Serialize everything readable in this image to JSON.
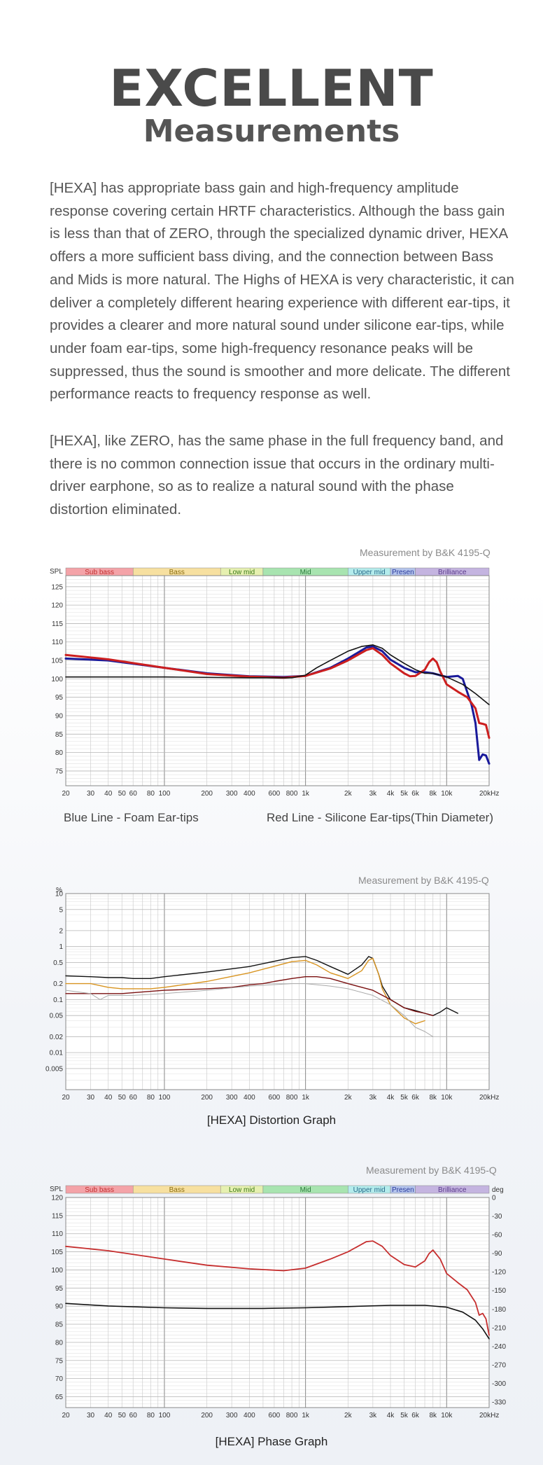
{
  "header": {
    "title": "EXCELLENT",
    "subtitle": "Measurements"
  },
  "paragraphs": [
    "[HEXA] has appropriate bass gain and high-frequency amplitude response covering certain HRTF characteristics. Although the bass gain is less than that of ZERO, through the specialized dynamic driver, HEXA offers a more sufficient bass diving, and the connection between Bass and Mids is more natural. The Highs of HEXA is very characteristic, it can deliver a completely different hearing experience with different ear-tips, it provides a clearer and more natural sound under silicone ear-tips, while under foam ear-tips, some high-frequency resonance peaks will be suppressed, thus the sound is smoother and more delicate. The different performance reacts to frequency response as well.",
    "[HEXA], like ZERO, has the same phase in the full frequency band, and there is no common connection issue that occurs in the ordinary multi-driver earphone, so as to realize a natural sound with the phase distortion eliminated."
  ],
  "colors": {
    "blue": "#1a1a9a",
    "red": "#cc1f1f",
    "black": "#111111",
    "dark_red": "#7a1010",
    "orange": "#d89420",
    "gray": "#aaaaaa",
    "phase_red": "#c62e2e"
  },
  "chart_data": [
    {
      "type": "line",
      "source_label": "Measurement by B&K 4195-Q",
      "ylabel": "SPL",
      "xlabel": "",
      "x_scale": "log",
      "xlim": [
        20,
        20000
      ],
      "ylim": [
        71,
        128
      ],
      "xticks": [
        {
          "v": 20,
          "t": "20"
        },
        {
          "v": 30,
          "t": "30"
        },
        {
          "v": 40,
          "t": "40"
        },
        {
          "v": 50,
          "t": "50"
        },
        {
          "v": 60,
          "t": "60"
        },
        {
          "v": 80,
          "t": "80"
        },
        {
          "v": 100,
          "t": "100"
        },
        {
          "v": 200,
          "t": "200"
        },
        {
          "v": 300,
          "t": "300"
        },
        {
          "v": 400,
          "t": "400"
        },
        {
          "v": 600,
          "t": "600"
        },
        {
          "v": 800,
          "t": "800"
        },
        {
          "v": 1000,
          "t": "1k"
        },
        {
          "v": 2000,
          "t": "2k"
        },
        {
          "v": 3000,
          "t": "3k"
        },
        {
          "v": 4000,
          "t": "4k"
        },
        {
          "v": 5000,
          "t": "5k"
        },
        {
          "v": 6000,
          "t": "6k"
        },
        {
          "v": 8000,
          "t": "8k"
        },
        {
          "v": 10000,
          "t": "10k"
        },
        {
          "v": 20000,
          "t": "20kHz"
        }
      ],
      "yticks": [
        75,
        80,
        85,
        90,
        95,
        100,
        105,
        110,
        115,
        120,
        125
      ],
      "bands": [
        {
          "label": "Sub bass",
          "from": 20,
          "to": 60,
          "color": "#f4a3a8"
        },
        {
          "label": "Bass",
          "from": 60,
          "to": 250,
          "color": "#f7e0a0"
        },
        {
          "label": "Low mid",
          "from": 250,
          "to": 500,
          "color": "#e6f0b0"
        },
        {
          "label": "Mid",
          "from": 500,
          "to": 2000,
          "color": "#a8e4b0"
        },
        {
          "label": "Upper mid",
          "from": 2000,
          "to": 4000,
          "color": "#b4ecec"
        },
        {
          "label": "Presen",
          "from": 4000,
          "to": 6000,
          "color": "#b4c4ec"
        },
        {
          "label": "Brilliance",
          "from": 6000,
          "to": 20000,
          "color": "#c4b4e0"
        }
      ],
      "series": [
        {
          "name": "Blue Line - Foam Ear-tips",
          "color": "#1a1a9a",
          "x": [
            20,
            40,
            100,
            200,
            400,
            700,
            1000,
            1500,
            2000,
            2700,
            3000,
            3500,
            4000,
            5000,
            6000,
            7000,
            8000,
            10000,
            12000,
            13000,
            15000,
            16000,
            17000,
            18000,
            19000,
            20000
          ],
          "y": [
            105.5,
            105,
            103,
            101.5,
            100.7,
            100.5,
            100.8,
            103,
            105.5,
            108.5,
            108.8,
            107.5,
            105.2,
            103,
            101.8,
            101.8,
            101.5,
            100.5,
            100.8,
            100,
            93,
            88,
            78,
            79.5,
            79.2,
            77
          ]
        },
        {
          "name": "Red Line - Silicone Ear-tips(Thin Diameter)",
          "color": "#cc1f1f",
          "x": [
            20,
            40,
            100,
            200,
            400,
            700,
            1000,
            1500,
            2000,
            2700,
            3000,
            3500,
            4000,
            5000,
            5500,
            6000,
            7000,
            7500,
            8000,
            8500,
            9000,
            10000,
            12000,
            14000,
            16000,
            17000,
            18000,
            19000,
            20000
          ],
          "y": [
            106.5,
            105.3,
            103,
            101.3,
            100.6,
            100.3,
            100.8,
            102.8,
            105,
            107.8,
            108.3,
            106.5,
            104.2,
            101.5,
            100.7,
            100.8,
            102.5,
            104.5,
            105.5,
            104.5,
            102,
            98.5,
            96.5,
            95,
            92,
            88,
            87.8,
            87.5,
            84
          ]
        },
        {
          "name": "",
          "color": "#111111",
          "x": [
            20,
            100,
            400,
            800,
            1000,
            1200,
            1500,
            2000,
            2500,
            3000,
            3500,
            4000,
            5000,
            6000,
            7000,
            8000,
            10000,
            13000,
            16000,
            20000
          ],
          "y": [
            100.5,
            100.5,
            100.3,
            100.3,
            101,
            103,
            105,
            107.5,
            108.8,
            109.2,
            108.3,
            106.5,
            104.2,
            102.5,
            101.5,
            101.5,
            100.5,
            98.5,
            96,
            93
          ]
        }
      ]
    },
    {
      "type": "line",
      "source_label": "Measurement by B&K 4195-Q",
      "ylabel": "%",
      "xlabel": "",
      "x_scale": "log",
      "y_scale": "log",
      "xlim": [
        20,
        20000
      ],
      "ylim": [
        0.002,
        10
      ],
      "xticks": [
        {
          "v": 20,
          "t": "20"
        },
        {
          "v": 30,
          "t": "30"
        },
        {
          "v": 40,
          "t": "40"
        },
        {
          "v": 50,
          "t": "50"
        },
        {
          "v": 60,
          "t": "60"
        },
        {
          "v": 80,
          "t": "80"
        },
        {
          "v": 100,
          "t": "100"
        },
        {
          "v": 200,
          "t": "200"
        },
        {
          "v": 300,
          "t": "300"
        },
        {
          "v": 400,
          "t": "400"
        },
        {
          "v": 600,
          "t": "600"
        },
        {
          "v": 800,
          "t": "800"
        },
        {
          "v": 1000,
          "t": "1k"
        },
        {
          "v": 2000,
          "t": "2k"
        },
        {
          "v": 3000,
          "t": "3k"
        },
        {
          "v": 4000,
          "t": "4k"
        },
        {
          "v": 5000,
          "t": "5k"
        },
        {
          "v": 6000,
          "t": "6k"
        },
        {
          "v": 8000,
          "t": "8k"
        },
        {
          "v": 10000,
          "t": "10k"
        },
        {
          "v": 20000,
          "t": "20kHz"
        }
      ],
      "yticks": [
        {
          "v": 10,
          "t": "10"
        },
        {
          "v": 5,
          "t": "5"
        },
        {
          "v": 2,
          "t": "2"
        },
        {
          "v": 1,
          "t": "1"
        },
        {
          "v": 0.5,
          "t": "0.5"
        },
        {
          "v": 0.2,
          "t": "0.2"
        },
        {
          "v": 0.1,
          "t": "0.1"
        },
        {
          "v": 0.05,
          "t": "0.05"
        },
        {
          "v": 0.02,
          "t": "0.02"
        },
        {
          "v": 0.01,
          "t": "0.01"
        },
        {
          "v": 0.005,
          "t": "0.005"
        }
      ],
      "caption": "[HEXA] Distortion Graph",
      "series": [
        {
          "name": "",
          "color": "#111111",
          "x": [
            20,
            30,
            40,
            50,
            60,
            80,
            100,
            200,
            400,
            800,
            1000,
            1200,
            1500,
            2000,
            2500,
            2800,
            3000,
            3300,
            3500,
            4000,
            5000,
            6000,
            7000,
            8000,
            9000,
            10000,
            12000
          ],
          "y": [
            0.28,
            0.27,
            0.26,
            0.26,
            0.25,
            0.25,
            0.27,
            0.33,
            0.42,
            0.62,
            0.65,
            0.55,
            0.42,
            0.3,
            0.45,
            0.65,
            0.6,
            0.3,
            0.18,
            0.1,
            0.07,
            0.062,
            0.055,
            0.05,
            0.058,
            0.07,
            0.055
          ]
        },
        {
          "name": "",
          "color": "#d89420",
          "x": [
            20,
            30,
            40,
            50,
            60,
            80,
            100,
            200,
            400,
            800,
            1000,
            1200,
            1500,
            2000,
            2500,
            2800,
            3000,
            3300,
            3500,
            4000,
            5000,
            6000,
            7000
          ],
          "y": [
            0.2,
            0.2,
            0.17,
            0.16,
            0.16,
            0.16,
            0.17,
            0.22,
            0.32,
            0.52,
            0.55,
            0.45,
            0.32,
            0.25,
            0.35,
            0.55,
            0.6,
            0.3,
            0.16,
            0.08,
            0.045,
            0.035,
            0.04
          ]
        },
        {
          "name": "",
          "color": "#7a1010",
          "x": [
            20,
            50,
            100,
            200,
            300,
            400,
            500,
            600,
            800,
            1000,
            1200,
            1500,
            2000,
            3000,
            4000,
            5000,
            6000,
            7000,
            8000
          ],
          "y": [
            0.13,
            0.13,
            0.15,
            0.16,
            0.17,
            0.19,
            0.2,
            0.22,
            0.25,
            0.27,
            0.27,
            0.25,
            0.2,
            0.15,
            0.1,
            0.07,
            0.06,
            0.055,
            0.05
          ]
        },
        {
          "name": "",
          "color": "#aaaaaa",
          "x": [
            20,
            30,
            35,
            40,
            60,
            100,
            200,
            400,
            800,
            1000,
            1500,
            2000,
            3000,
            4000,
            5000,
            6000,
            7000,
            8000
          ],
          "y": [
            0.15,
            0.13,
            0.1,
            0.12,
            0.12,
            0.13,
            0.15,
            0.18,
            0.2,
            0.2,
            0.18,
            0.16,
            0.12,
            0.08,
            0.05,
            0.03,
            0.025,
            0.02
          ]
        }
      ]
    },
    {
      "type": "line",
      "source_label": "Measurement by B&K 4195-Q",
      "ylabel": "SPL",
      "y2label": "deg",
      "xlabel": "",
      "x_scale": "log",
      "xlim": [
        20,
        20000
      ],
      "ylim": [
        62,
        120
      ],
      "y2lim": [
        -339,
        0
      ],
      "xticks": [
        {
          "v": 20,
          "t": "20"
        },
        {
          "v": 30,
          "t": "30"
        },
        {
          "v": 40,
          "t": "40"
        },
        {
          "v": 50,
          "t": "50"
        },
        {
          "v": 60,
          "t": "60"
        },
        {
          "v": 80,
          "t": "80"
        },
        {
          "v": 100,
          "t": "100"
        },
        {
          "v": 200,
          "t": "200"
        },
        {
          "v": 300,
          "t": "300"
        },
        {
          "v": 400,
          "t": "400"
        },
        {
          "v": 600,
          "t": "600"
        },
        {
          "v": 800,
          "t": "800"
        },
        {
          "v": 1000,
          "t": "1k"
        },
        {
          "v": 2000,
          "t": "2k"
        },
        {
          "v": 3000,
          "t": "3k"
        },
        {
          "v": 4000,
          "t": "4k"
        },
        {
          "v": 5000,
          "t": "5k"
        },
        {
          "v": 6000,
          "t": "6k"
        },
        {
          "v": 8000,
          "t": "8k"
        },
        {
          "v": 10000,
          "t": "10k"
        },
        {
          "v": 20000,
          "t": "20kHz"
        }
      ],
      "yticks": [
        65,
        70,
        75,
        80,
        85,
        90,
        95,
        100,
        105,
        110,
        115,
        120
      ],
      "y2ticks": [
        0,
        -30,
        -60,
        -90,
        -120,
        -150,
        -180,
        -210,
        -240,
        -270,
        -300,
        -330
      ],
      "bands": [
        {
          "label": "Sub bass",
          "from": 20,
          "to": 60,
          "color": "#f4a3a8"
        },
        {
          "label": "Bass",
          "from": 60,
          "to": 250,
          "color": "#f7e0a0"
        },
        {
          "label": "Low mid",
          "from": 250,
          "to": 500,
          "color": "#e6f0b0"
        },
        {
          "label": "Mid",
          "from": 500,
          "to": 2000,
          "color": "#a8e4b0"
        },
        {
          "label": "Upper mid",
          "from": 2000,
          "to": 4000,
          "color": "#b4ecec"
        },
        {
          "label": "Presen",
          "from": 4000,
          "to": 6000,
          "color": "#b4c4ec"
        },
        {
          "label": "Brilliance",
          "from": 6000,
          "to": 20000,
          "color": "#c4b4e0"
        }
      ],
      "caption": "[HEXA] Phase Graph",
      "series": [
        {
          "name": "",
          "color": "#c62e2e",
          "axis": "left",
          "x": [
            20,
            40,
            100,
            200,
            400,
            700,
            1000,
            1500,
            2000,
            2700,
            3000,
            3500,
            4000,
            5000,
            6000,
            7000,
            7500,
            8000,
            9000,
            10000,
            12000,
            14000,
            16000,
            17000,
            18000,
            19000,
            20000
          ],
          "y": [
            106.5,
            105.3,
            103,
            101.3,
            100.3,
            99.8,
            100.5,
            103,
            105,
            107.8,
            108,
            106.5,
            104,
            101.5,
            100.8,
            102.5,
            104.5,
            105.5,
            103,
            99,
            96.5,
            94.5,
            91,
            87.5,
            88,
            86.5,
            82
          ]
        },
        {
          "name": "",
          "color": "#111111",
          "axis": "right",
          "x": [
            20,
            40,
            100,
            200,
            500,
            1000,
            2000,
            4000,
            7000,
            10000,
            13000,
            16000,
            18000,
            20000
          ],
          "y": [
            -171,
            -175,
            -178,
            -179,
            -179,
            -178,
            -176,
            -174,
            -174,
            -177,
            -185,
            -198,
            -212,
            -228
          ]
        }
      ]
    }
  ],
  "chart1_legend": {
    "blue_label": "Blue Line - Foam Ear-tips",
    "red_label": "Red Line - Silicone Ear-tips(Thin Diameter)"
  }
}
